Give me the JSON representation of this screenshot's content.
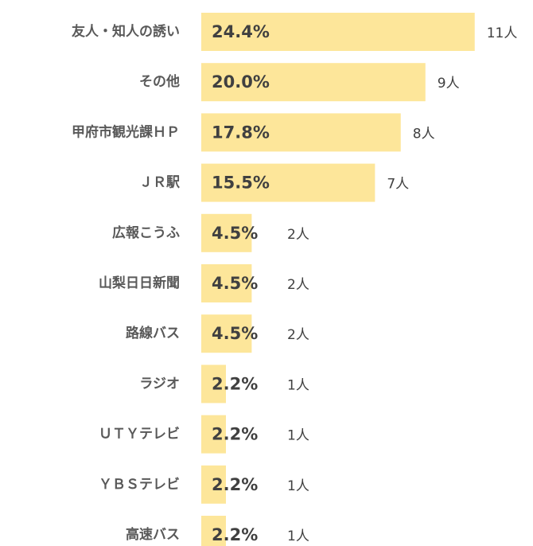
{
  "chart_data": {
    "type": "barh",
    "categories": [
      "友人・知人の誘い",
      "その他",
      "甲府市観光課ＨＰ",
      "ＪＲ駅",
      "広報こうふ",
      "山梨日日新聞",
      "路線バス",
      "ラジオ",
      "ＵＴＹテレビ",
      "ＹＢＳテレビ",
      "高速バス"
    ],
    "values": [
      24.4,
      20.0,
      17.8,
      15.5,
      4.5,
      4.5,
      4.5,
      2.2,
      2.2,
      2.2,
      2.2
    ],
    "value_labels": [
      "24.4%",
      "20.0%",
      "17.8%",
      "15.5%",
      "4.5%",
      "4.5%",
      "4.5%",
      "2.2%",
      "2.2%",
      "2.2%",
      "2.2%"
    ],
    "counts": [
      11,
      9,
      8,
      7,
      2,
      2,
      2,
      1,
      1,
      1,
      1
    ],
    "count_labels": [
      "11人",
      "9人",
      "8人",
      "7人",
      "2人",
      "2人",
      "2人",
      "1人",
      "1人",
      "1人",
      "1人"
    ],
    "color": "#fde69a",
    "xlim": [
      0,
      29.6
    ]
  }
}
